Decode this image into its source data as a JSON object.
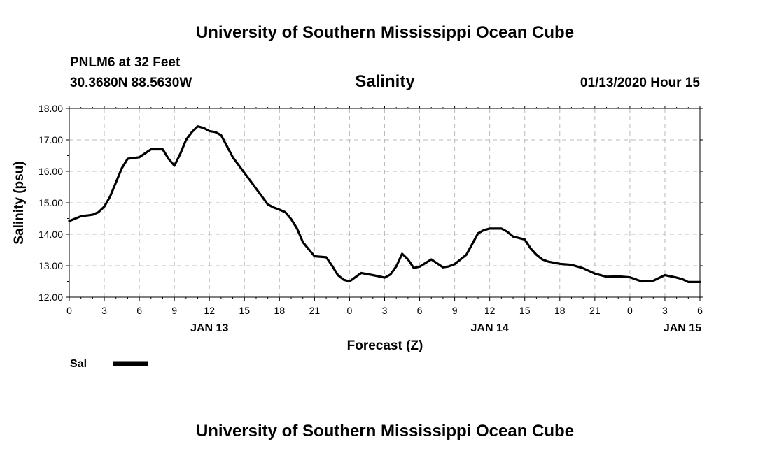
{
  "header": {
    "title": "University of Southern Mississippi Ocean Cube",
    "station": "PNLM6 at 32 Feet",
    "coords": "30.3680N 88.5630W",
    "chart_title": "Salinity",
    "timestamp": "01/13/2020 Hour 15"
  },
  "footer": {
    "title": "University of Southern Mississippi Ocean Cube"
  },
  "legend": {
    "label": "Sal"
  },
  "colors": {
    "line": "#000000",
    "grid": "#bbbbbb"
  },
  "chart_data": {
    "type": "line",
    "xlabel": "Forecast (Z)",
    "ylabel": "Salinity (psu)",
    "ylim": [
      12.0,
      18.0
    ],
    "xlim": [
      0,
      54
    ],
    "y_ticks": [
      "12.00",
      "13.00",
      "14.00",
      "15.00",
      "16.00",
      "17.00",
      "18.00"
    ],
    "x_ticks": [
      "0",
      "3",
      "6",
      "9",
      "12",
      "15",
      "18",
      "21",
      "0",
      "3",
      "6",
      "9",
      "12",
      "15",
      "18",
      "21",
      "0",
      "3",
      "6"
    ],
    "day_labels": [
      {
        "label": "JAN 13",
        "x": 12
      },
      {
        "label": "JAN 14",
        "x": 36
      },
      {
        "label": "JAN 15",
        "x": 52.5
      }
    ],
    "grid": true,
    "legend_position": "bottom-left",
    "series": [
      {
        "name": "Sal",
        "x": [
          0,
          1,
          2,
          2.5,
          3,
          3.5,
          4,
          4.5,
          5,
          6,
          7,
          8,
          8.5,
          9,
          9.5,
          10,
          10.5,
          11,
          11.5,
          12,
          12.5,
          13,
          14,
          15,
          16,
          17,
          17.5,
          18,
          18.5,
          19,
          19.5,
          20,
          21,
          22,
          22.5,
          23,
          23.5,
          24,
          25,
          26,
          27,
          27.5,
          28,
          28.5,
          29,
          29.5,
          30,
          31,
          32,
          32.5,
          33,
          34,
          35,
          35.5,
          36,
          37,
          37.5,
          38,
          39,
          39.5,
          40,
          40.5,
          41,
          42,
          43,
          44,
          45,
          46,
          47,
          48,
          49,
          50,
          51,
          52,
          52.5,
          53,
          54
        ],
        "values": [
          14.42,
          14.57,
          14.62,
          14.7,
          14.88,
          15.2,
          15.65,
          16.1,
          16.4,
          16.45,
          16.7,
          16.7,
          16.4,
          16.18,
          16.55,
          17.0,
          17.25,
          17.43,
          17.38,
          17.28,
          17.25,
          17.15,
          16.45,
          15.95,
          15.45,
          14.95,
          14.85,
          14.78,
          14.7,
          14.48,
          14.18,
          13.75,
          13.3,
          13.27,
          13.0,
          12.7,
          12.55,
          12.5,
          12.77,
          12.7,
          12.62,
          12.72,
          12.98,
          13.38,
          13.2,
          12.93,
          12.97,
          13.2,
          12.95,
          12.98,
          13.05,
          13.35,
          14.03,
          14.13,
          14.18,
          14.18,
          14.08,
          13.93,
          13.83,
          13.55,
          13.35,
          13.2,
          13.13,
          13.06,
          13.03,
          12.92,
          12.75,
          12.65,
          12.66,
          12.63,
          12.5,
          12.52,
          12.7,
          12.62,
          12.57,
          12.48,
          12.48
        ]
      }
    ]
  }
}
